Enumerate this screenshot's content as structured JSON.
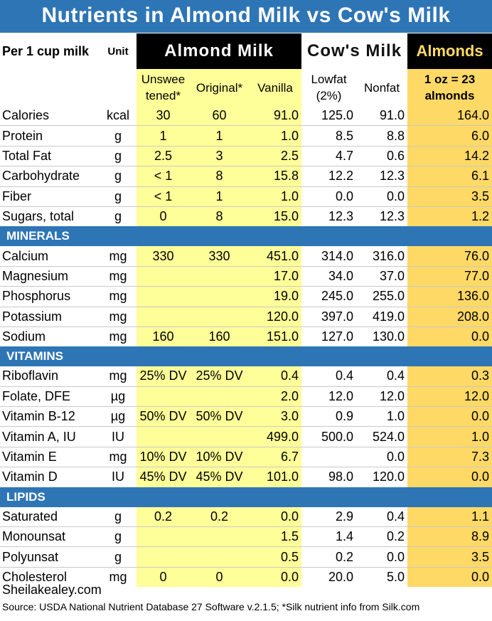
{
  "title": "Nutrients in Almond Milk vs Cow's Milk",
  "header": {
    "per_label": "Per 1 cup milk",
    "unit_label": "Unit",
    "almond_milk": "Almond Milk",
    "cows_milk": "Cow's Milk",
    "almonds": "Almonds",
    "sub_unsweetened": "Unswee tened*",
    "sub_original": "Original*",
    "sub_vanilla": "Vanilla",
    "sub_lowfat": "Lowfat (2%)",
    "sub_nonfat": "Nonfat",
    "sub_almonds": "1 oz = 23 almonds"
  },
  "sections": [
    {
      "name": "",
      "rows": [
        {
          "label": "Calories",
          "unit": "kcal",
          "unsweetened": "30",
          "original": "60",
          "vanilla": "91.0",
          "lowfat": "125.0",
          "nonfat": "91.0",
          "almonds": "164.0"
        },
        {
          "label": "Protein",
          "unit": "g",
          "unsweetened": "1",
          "original": "1",
          "vanilla": "1.0",
          "lowfat": "8.5",
          "nonfat": "8.8",
          "almonds": "6.0"
        },
        {
          "label": "Total Fat",
          "unit": "g",
          "unsweetened": "2.5",
          "original": "3",
          "vanilla": "2.5",
          "lowfat": "4.7",
          "nonfat": "0.6",
          "almonds": "14.2"
        },
        {
          "label": "Carbohydrate",
          "unit": "g",
          "unsweetened": "< 1",
          "original": "8",
          "vanilla": "15.8",
          "lowfat": "12.2",
          "nonfat": "12.3",
          "almonds": "6.1"
        },
        {
          "label": "Fiber",
          "unit": "g",
          "unsweetened": "< 1",
          "original": "1",
          "vanilla": "1.0",
          "lowfat": "0.0",
          "nonfat": "0.0",
          "almonds": "3.5"
        },
        {
          "label": "Sugars, total",
          "unit": "g",
          "unsweetened": "0",
          "original": "8",
          "vanilla": "15.0",
          "lowfat": "12.3",
          "nonfat": "12.3",
          "almonds": "1.2"
        }
      ]
    },
    {
      "name": "MINERALS",
      "rows": [
        {
          "label": "Calcium",
          "unit": "mg",
          "unsweetened": "330",
          "original": "330",
          "vanilla": "451.0",
          "lowfat": "314.0",
          "nonfat": "316.0",
          "almonds": "76.0"
        },
        {
          "label": "Magnesium",
          "unit": "mg",
          "unsweetened": "",
          "original": "",
          "vanilla": "17.0",
          "lowfat": "34.0",
          "nonfat": "37.0",
          "almonds": "77.0"
        },
        {
          "label": "Phosphorus",
          "unit": "mg",
          "unsweetened": "",
          "original": "",
          "vanilla": "19.0",
          "lowfat": "245.0",
          "nonfat": "255.0",
          "almonds": "136.0"
        },
        {
          "label": "Potassium",
          "unit": "mg",
          "unsweetened": "",
          "original": "",
          "vanilla": "120.0",
          "lowfat": "397.0",
          "nonfat": "419.0",
          "almonds": "208.0"
        },
        {
          "label": "Sodium",
          "unit": "mg",
          "unsweetened": "160",
          "original": "160",
          "vanilla": "151.0",
          "lowfat": "127.0",
          "nonfat": "130.0",
          "almonds": "0.0"
        }
      ]
    },
    {
      "name": "VITAMINS",
      "rows": [
        {
          "label": "Riboflavin",
          "unit": "mg",
          "unsweetened": "25% DV",
          "original": "25% DV",
          "vanilla": "0.4",
          "lowfat": "0.4",
          "nonfat": "0.4",
          "almonds": "0.3"
        },
        {
          "label": "Folate, DFE",
          "unit": "µg",
          "unsweetened": "",
          "original": "",
          "vanilla": "2.0",
          "lowfat": "12.0",
          "nonfat": "12.0",
          "almonds": "12.0"
        },
        {
          "label": "Vitamin B-12",
          "unit": "µg",
          "unsweetened": "50% DV",
          "original": "50% DV",
          "vanilla": "3.0",
          "lowfat": "0.9",
          "nonfat": "1.0",
          "almonds": "0.0"
        },
        {
          "label": "Vitamin A, IU",
          "unit": "IU",
          "unsweetened": "",
          "original": "",
          "vanilla": "499.0",
          "lowfat": "500.0",
          "nonfat": "524.0",
          "almonds": "1.0"
        },
        {
          "label": "Vitamin E",
          "unit": "mg",
          "unsweetened": "10% DV",
          "original": "10% DV",
          "vanilla": "6.7",
          "lowfat": "",
          "nonfat": "0.0",
          "almonds": "7.3"
        },
        {
          "label": "Vitamin D",
          "unit": "IU",
          "unsweetened": "45% DV",
          "original": "45% DV",
          "vanilla": "101.0",
          "lowfat": "98.0",
          "nonfat": "120.0",
          "almonds": "0.0"
        }
      ]
    },
    {
      "name": "LIPIDS",
      "rows": [
        {
          "label": "Saturated",
          "unit": "g",
          "unsweetened": "0.2",
          "original": "0.2",
          "vanilla": "0.0",
          "lowfat": "2.9",
          "nonfat": "0.4",
          "almonds": "1.1"
        },
        {
          "label": "Monounsat",
          "unit": "g",
          "unsweetened": "",
          "original": "",
          "vanilla": "1.5",
          "lowfat": "1.4",
          "nonfat": "0.2",
          "almonds": "8.9"
        },
        {
          "label": "Polyunsat",
          "unit": "g",
          "unsweetened": "",
          "original": "",
          "vanilla": "0.5",
          "lowfat": "0.2",
          "nonfat": "0.0",
          "almonds": "3.5"
        },
        {
          "label": "Cholesterol",
          "unit": "mg",
          "unsweetened": "0",
          "original": "0",
          "vanilla": "0.0",
          "lowfat": "20.0",
          "nonfat": "5.0",
          "almonds": "0.0"
        }
      ]
    }
  ],
  "footer": {
    "site": "Sheilakealey.com",
    "source": "Source: USDA National Nutrient Database  27 Software v.2.1.5; *Silk nutrient info from Silk.com"
  },
  "colors": {
    "title_bar": "#2e75b6",
    "almond_milk_fill": "#ffff99",
    "almonds_fill": "#ffd966",
    "section_bar": "#2e75b6"
  }
}
